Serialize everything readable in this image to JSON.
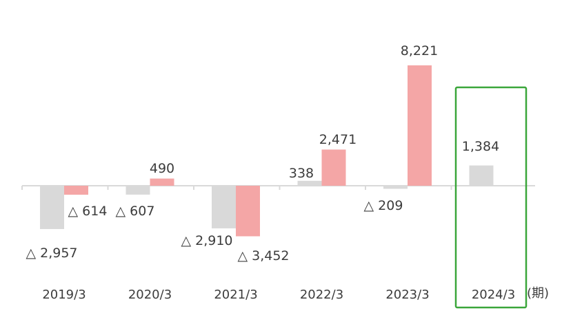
{
  "chart_data": {
    "type": "bar",
    "categories": [
      "2019/3",
      "2020/3",
      "2021/3",
      "2022/3",
      "2023/3",
      "2024/3"
    ],
    "series": [
      {
        "values": [
          -2957,
          -607,
          -2910,
          338,
          -209,
          1384
        ],
        "color": "#d9d9d9",
        "labels": [
          "△ 2,957",
          "△ 607",
          "△ 2,910",
          "338",
          "△ 209",
          "1,384"
        ]
      },
      {
        "values": [
          -614,
          490,
          -3452,
          2471,
          8221,
          null
        ],
        "color": "#f4a6a6",
        "labels": [
          "△ 614",
          "490",
          "△ 3,452",
          "2,471",
          "8,221",
          ""
        ]
      }
    ],
    "x_unit": "(期)",
    "highlight_category": "2024/3",
    "highlight_color": "#3aa63a",
    "axis_color": "#d9d9d9",
    "grid": false
  }
}
